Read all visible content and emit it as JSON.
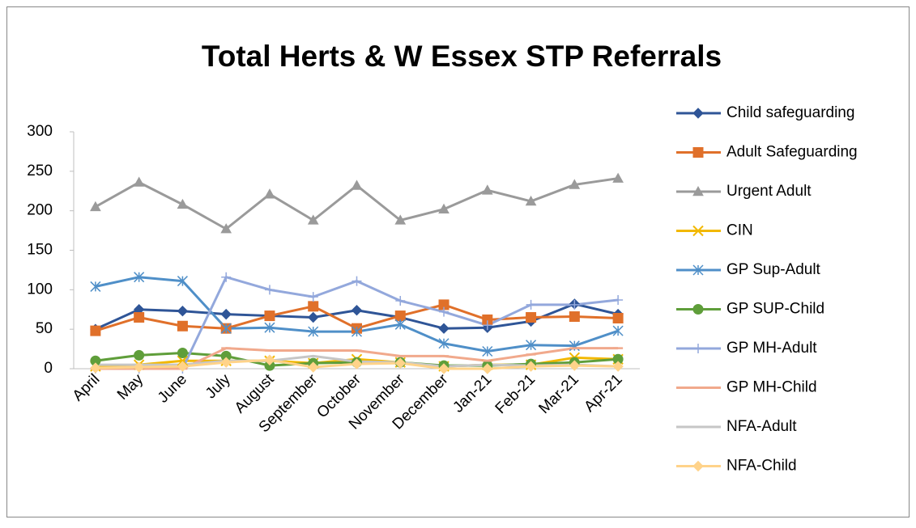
{
  "chart_data": {
    "type": "line",
    "title": "Total Herts & W Essex STP Referrals",
    "categories": [
      "April",
      "May",
      "June",
      "July",
      "August",
      "September",
      "October",
      "November",
      "December",
      "Jan-21",
      "Feb-21",
      "Mar-21",
      "Apr-21"
    ],
    "ylim": [
      0,
      300
    ],
    "yticks": [
      0,
      50,
      100,
      150,
      200,
      250,
      300
    ],
    "grid": false,
    "legend": "right",
    "series": [
      {
        "name": "Child safeguarding",
        "color": "#2f5597",
        "marker": "diamond",
        "values": [
          50,
          75,
          73,
          69,
          67,
          65,
          74,
          65,
          51,
          52,
          60,
          82,
          69
        ]
      },
      {
        "name": "Adult Safeguarding",
        "color": "#e0702a",
        "marker": "square",
        "values": [
          48,
          65,
          54,
          51,
          67,
          79,
          51,
          67,
          81,
          62,
          65,
          66,
          64
        ]
      },
      {
        "name": "Urgent Adult",
        "color": "#9a9a9a",
        "marker": "triangle",
        "values": [
          205,
          236,
          208,
          177,
          221,
          188,
          232,
          188,
          202,
          226,
          212,
          233,
          241
        ]
      },
      {
        "name": "CIN",
        "color": "#f2b800",
        "marker": "x",
        "values": [
          3,
          5,
          10,
          10,
          10,
          7,
          12,
          8,
          3,
          5,
          5,
          14,
          12
        ]
      },
      {
        "name": "GP Sup-Adult",
        "color": "#4f8fc8",
        "marker": "star",
        "values": [
          104,
          116,
          111,
          51,
          52,
          47,
          47,
          56,
          32,
          22,
          30,
          29,
          48
        ]
      },
      {
        "name": "GP SUP-Child",
        "color": "#5f9e3a",
        "marker": "circle",
        "values": [
          10,
          17,
          20,
          16,
          4,
          7,
          8,
          8,
          4,
          4,
          6,
          8,
          12
        ]
      },
      {
        "name": "GP MH-Adult",
        "color": "#93a8dc",
        "marker": "plus",
        "values": [
          0,
          0,
          0,
          116,
          100,
          91,
          111,
          86,
          72,
          55,
          81,
          81,
          87
        ]
      },
      {
        "name": "GP MH-Child",
        "color": "#f1a98c",
        "marker": "dash",
        "values": [
          0,
          0,
          0,
          26,
          23,
          23,
          23,
          16,
          16,
          10,
          18,
          26,
          26
        ]
      },
      {
        "name": "NFA-Adult",
        "color": "#c6c6c6",
        "marker": "none",
        "values": [
          5,
          5,
          5,
          10,
          10,
          16,
          9,
          8,
          3,
          5,
          4,
          5,
          3
        ]
      },
      {
        "name": "NFA-Child",
        "color": "#ffd38a",
        "marker": "diamond",
        "values": [
          1,
          2,
          3,
          8,
          11,
          2,
          6,
          7,
          0,
          0,
          3,
          4,
          3
        ]
      }
    ]
  }
}
